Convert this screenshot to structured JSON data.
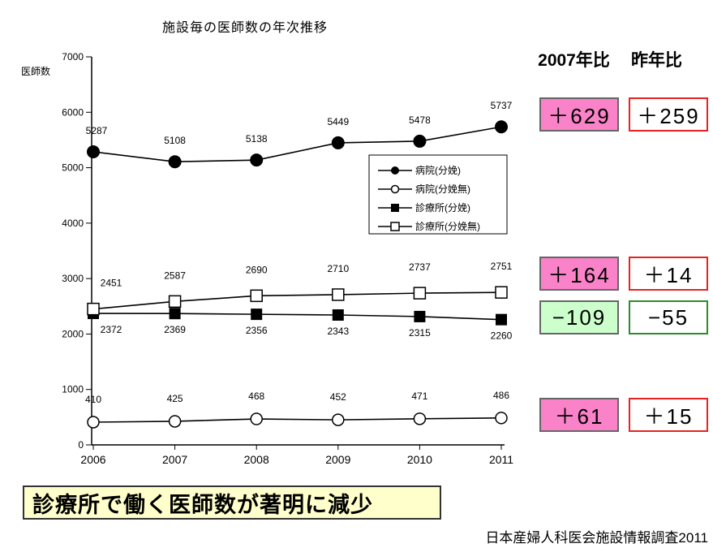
{
  "title": "施設毎の医師数の年次推移",
  "chart_data": {
    "type": "line",
    "x": [
      "2006",
      "2007",
      "2008",
      "2009",
      "2010",
      "2011"
    ],
    "ylabel": "医師数",
    "ylim": [
      0,
      7000
    ],
    "yticks": [
      0,
      1000,
      2000,
      3000,
      4000,
      5000,
      6000,
      7000
    ],
    "grid": false,
    "legend_position": "inside-right",
    "series": [
      {
        "name": "病院(分娩)",
        "marker": "filled-circle",
        "values": [
          5287,
          5108,
          5138,
          5449,
          5478,
          5737
        ]
      },
      {
        "name": "病院(分娩無)",
        "marker": "open-circle",
        "values": [
          410,
          425,
          468,
          452,
          471,
          486
        ]
      },
      {
        "name": "診療所(分娩)",
        "marker": "filled-square",
        "values": [
          2372,
          2369,
          2356,
          2343,
          2315,
          2260
        ]
      },
      {
        "name": "診療所(分娩無)",
        "marker": "open-square",
        "values": [
          2451,
          2587,
          2690,
          2710,
          2737,
          2751
        ]
      }
    ]
  },
  "comparison": {
    "header1": "2007年比",
    "header2": "昨年比",
    "rows": [
      {
        "vs2007": "＋629",
        "vs_last_year": "＋259",
        "box1_style": "pink",
        "box2_style": "red"
      },
      {
        "vs2007": "＋164",
        "vs_last_year": "＋14",
        "box1_style": "pink",
        "box2_style": "red"
      },
      {
        "vs2007": "−109",
        "vs_last_year": "−55",
        "box1_style": "green",
        "box2_style": "green"
      },
      {
        "vs2007": "＋61",
        "vs_last_year": "＋15",
        "box1_style": "pink",
        "box2_style": "red"
      }
    ]
  },
  "banner": {
    "text": "診療所で働く医師数が著明に減少"
  },
  "source": {
    "text": "日本産婦人科医会施設情報調査2011"
  },
  "colors": {
    "pink_fill": "#fa82c8",
    "green_fill": "#ccffcc",
    "red_border": "#e62222",
    "green_border": "#2e8b2e",
    "gray_border": "#666666",
    "banner_bg": "#ffffcc",
    "banner_border": "#333333",
    "series_color": "#000000"
  }
}
